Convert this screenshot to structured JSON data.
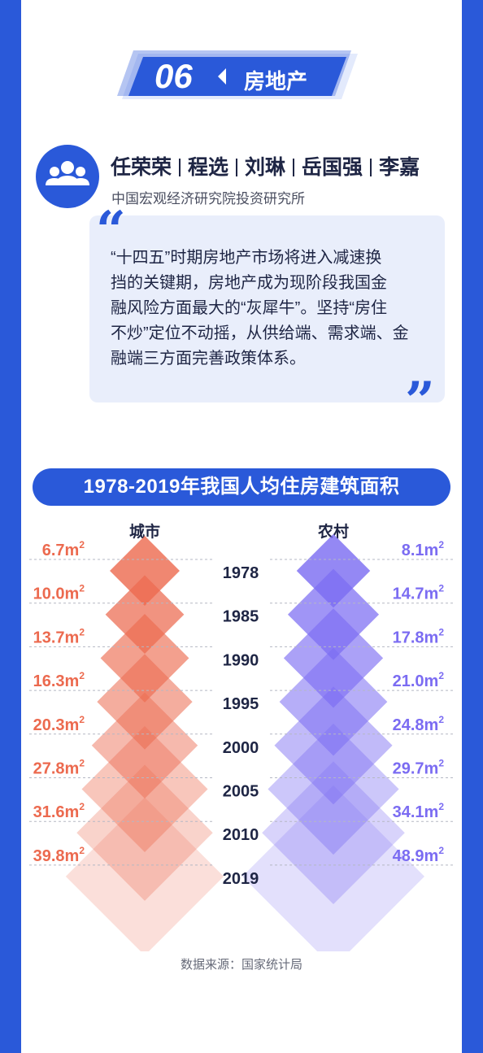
{
  "section": {
    "number": "06",
    "title": "房地产"
  },
  "authors": [
    "任荣荣",
    "程选",
    "刘琳",
    "岳国强",
    "李嘉"
  ],
  "institute": "中国宏观经济研究院投资研究所",
  "quote": {
    "open_mark": "“",
    "close_mark": "”",
    "lines": [
      "“十四五”时期房地产市场将进入减速换",
      "挡的关键期，房地产成为现阶段我国金",
      "融风险方面最大的“灰犀牛”。坚持“房住",
      "不炒”定位不动摇，从供给端、需求端、金",
      "融端三方面完善政策体系。"
    ]
  },
  "colors": {
    "brand_blue": "#2a59d9",
    "city": "#ec6a4f",
    "rural": "#7b6cf2"
  },
  "icons": {
    "avatar": "people-group-icon"
  },
  "chart_data": {
    "type": "diamond-comparison",
    "title": "1978-2019年我国人均住房建筑面积",
    "unit": "m",
    "unit_superscript": "2",
    "categories": [
      "1978",
      "1985",
      "1990",
      "1995",
      "2000",
      "2005",
      "2010",
      "2019"
    ],
    "series": [
      {
        "name": "城市",
        "values": [
          6.7,
          10.0,
          13.7,
          16.3,
          20.3,
          27.8,
          31.6,
          39.8
        ]
      },
      {
        "name": "农村",
        "values": [
          8.1,
          14.7,
          17.8,
          21.0,
          24.8,
          29.7,
          34.1,
          48.9
        ]
      }
    ]
  },
  "source": "数据来源：国家统计局"
}
